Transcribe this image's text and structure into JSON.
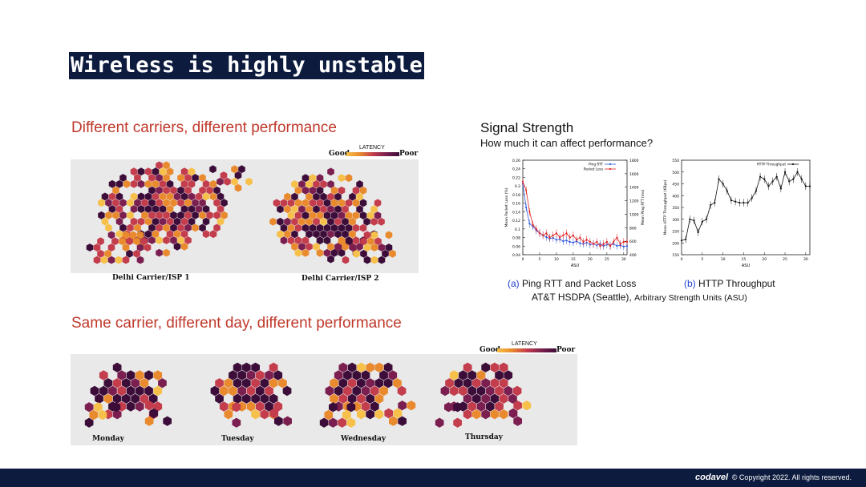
{
  "slide": {
    "title": "Wireless is highly unstable",
    "heading1": "Different carriers, different performance",
    "heading2": "Same carrier, different day, different performance"
  },
  "legend": {
    "title": "LATENCY",
    "good": "Good",
    "poor": "Poor"
  },
  "carrier_maps": {
    "labels": [
      "Delhi Carrier/ISP 1",
      "Delhi Carrier/ISP 2"
    ]
  },
  "day_maps": {
    "labels": [
      "Monday",
      "Tuesday",
      "Wednesday",
      "Thursday"
    ]
  },
  "signal": {
    "title": "Signal Strength",
    "subtitle": "How much it can affect performance?",
    "caption_a_tag": "(a)",
    "caption_a": "Ping RTT and Packet Loss",
    "caption_b_tag": "(b)",
    "caption_b": "HTTP Throughput",
    "caption_line2_main": "AT&T HSDPA (Seattle),",
    "caption_line2_small": "Arbitrary Strength Units (ASU)"
  },
  "colors": {
    "navy": "#0d1b3e",
    "accent_red": "#c0392b",
    "blue": "#1f3fd1",
    "heat": [
      "#f6c04a",
      "#e98a2e",
      "#c33d4c",
      "#7a1f4f",
      "#3d0d3a"
    ]
  },
  "chart_data": [
    {
      "type": "line",
      "title": "",
      "xlabel": "ASU",
      "ylabel": "Mean Packet Loss (%)",
      "ylabel_right": "Mean Ping RTT (ms)",
      "x": [
        0,
        1,
        2,
        3,
        4,
        5,
        6,
        7,
        8,
        9,
        10,
        11,
        12,
        13,
        14,
        15,
        16,
        17,
        18,
        19,
        20,
        21,
        22,
        23,
        24,
        25,
        26,
        27,
        28,
        29,
        30,
        31
      ],
      "xlim": [
        0,
        31
      ],
      "xticks": [
        "0",
        "5",
        "10",
        "15",
        "20",
        "25",
        "30"
      ],
      "ylim": [
        0.04,
        0.26
      ],
      "yticks": [
        "0.04",
        "0.06",
        "0.08",
        "0.1",
        "0.12",
        "0.14",
        "0.16",
        "0.18",
        "0.2",
        "0.22",
        "0.24",
        "0.26"
      ],
      "ylim_right": [
        400,
        1800
      ],
      "yticks_right": [
        "400",
        "600",
        "800",
        "1000",
        "1200",
        "1400",
        "1600",
        "1800"
      ],
      "legend": [
        "Ping RTT",
        "Packet Loss"
      ],
      "series": [
        {
          "name": "Ping RTT",
          "axis": "right",
          "values": [
            1450,
            1100,
            860,
            820,
            760,
            720,
            690,
            660,
            640,
            650,
            620,
            630,
            600,
            610,
            590,
            580,
            600,
            570,
            560,
            580,
            550,
            560,
            540,
            560,
            530,
            550,
            540,
            560,
            530,
            540,
            520,
            530
          ]
        },
        {
          "name": "Packet Loss",
          "axis": "left",
          "values": [
            0.21,
            0.19,
            0.14,
            0.11,
            0.1,
            0.09,
            0.085,
            0.09,
            0.08,
            0.085,
            0.09,
            0.08,
            0.085,
            0.09,
            0.08,
            0.085,
            0.075,
            0.08,
            0.07,
            0.075,
            0.07,
            0.065,
            0.07,
            0.06,
            0.065,
            0.07,
            0.06,
            0.07,
            0.08,
            0.065,
            0.07,
            0.07
          ]
        }
      ]
    },
    {
      "type": "line",
      "title": "",
      "xlabel": "ASU",
      "ylabel": "Mean HTTP Throughput (KBps)",
      "x": [
        0,
        1,
        2,
        3,
        4,
        5,
        6,
        7,
        8,
        9,
        10,
        11,
        12,
        13,
        14,
        15,
        16,
        17,
        18,
        19,
        20,
        21,
        22,
        23,
        24,
        25,
        26,
        27,
        28,
        29,
        30,
        31
      ],
      "xlim": [
        0,
        31
      ],
      "xticks": [
        "0",
        "5",
        "10",
        "15",
        "20",
        "25",
        "30"
      ],
      "ylim": [
        150,
        550
      ],
      "yticks": [
        "150",
        "200",
        "250",
        "300",
        "350",
        "400",
        "450",
        "500",
        "550"
      ],
      "legend": [
        "HTTP Throughput"
      ],
      "series": [
        {
          "name": "HTTP Throughput",
          "values": [
            210,
            215,
            300,
            295,
            245,
            290,
            300,
            360,
            370,
            470,
            450,
            420,
            380,
            375,
            370,
            370,
            370,
            390,
            420,
            480,
            470,
            440,
            460,
            480,
            430,
            500,
            460,
            470,
            500,
            470,
            440,
            440
          ]
        }
      ]
    }
  ]
}
